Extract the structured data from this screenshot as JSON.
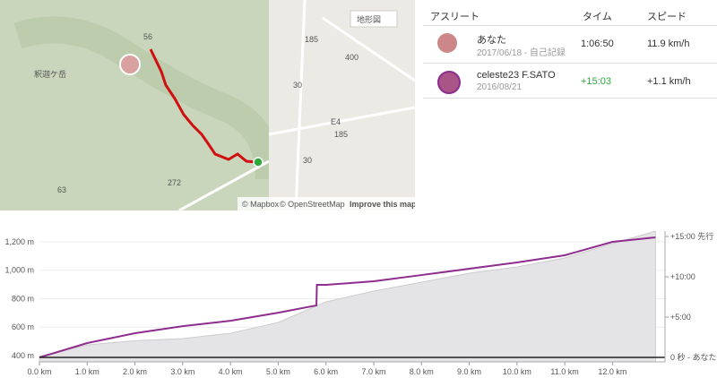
{
  "map": {
    "layer_button": "地形図",
    "place": "釈迦ケ岳",
    "roads": [
      "56",
      "185",
      "400",
      "30",
      "E4",
      "185",
      "30",
      "63",
      "272"
    ],
    "attribution": [
      "© Mapbox",
      "© OpenStreetMap",
      "Improve this map"
    ]
  },
  "table": {
    "headers": [
      "アスリート",
      "タイム",
      "スピード"
    ],
    "rows": [
      {
        "name": "あなた",
        "date": "2017/06/18 - 自己記録",
        "time": "1:06:50",
        "speed": "11.9 km/h"
      },
      {
        "name": "celeste23 F.SATO",
        "date": "2016/08/21",
        "time": "+15:03",
        "speed": "+1.1 km/h"
      }
    ]
  },
  "chart": {
    "xlim": [
      0,
      13.1
    ],
    "ylim": [
      356,
      1275
    ],
    "y2lim": [
      -33,
      940
    ],
    "xticks": [
      {
        "value": 0,
        "label": "0.0 km"
      },
      {
        "value": 1,
        "label": "1.0 km"
      },
      {
        "value": 2,
        "label": "2.0 km"
      },
      {
        "value": 3,
        "label": "3.0 km"
      },
      {
        "value": 4,
        "label": "4.0 km"
      },
      {
        "value": 5,
        "label": "5.0 km"
      },
      {
        "value": 6,
        "label": "6.0 km"
      },
      {
        "value": 7,
        "label": "7.0 km"
      },
      {
        "value": 8,
        "label": "8.0 km"
      },
      {
        "value": 9,
        "label": "9.0 km"
      },
      {
        "value": 10,
        "label": "10.0 km"
      },
      {
        "value": 11,
        "label": "11.0 km"
      },
      {
        "value": 12,
        "label": "12.0 km"
      }
    ],
    "yticks": [
      {
        "value": 400,
        "label": "400 m"
      },
      {
        "value": 600,
        "label": "600 m"
      },
      {
        "value": 800,
        "label": "800 m"
      },
      {
        "value": 1000,
        "label": "1,000 m"
      },
      {
        "value": 1200,
        "label": "1,200 m"
      }
    ],
    "y2ticks": [
      {
        "value": 0,
        "label": "0 秒 - あなた"
      },
      {
        "value": 300,
        "label": "+5:00"
      },
      {
        "value": 600,
        "label": "+10:00"
      },
      {
        "value": 900,
        "label": "+15:00 先行"
      }
    ],
    "elevation": {
      "color": "#e4e4e6",
      "x": [
        0,
        1,
        2,
        3,
        4,
        5,
        6,
        7,
        8,
        9,
        10,
        11,
        12,
        12.9
      ],
      "values": [
        395,
        475,
        505,
        520,
        557,
        633,
        778,
        853,
        916,
        979,
        1023,
        1086,
        1187,
        1275
      ]
    },
    "gap": {
      "color": "#8e2d8e",
      "x": [
        0,
        1,
        2,
        3,
        4,
        5,
        5.8,
        5.81,
        6,
        7,
        8,
        9,
        10,
        11,
        12,
        12.9
      ],
      "values": [
        0,
        107,
        180,
        233,
        273,
        333,
        387,
        540,
        540,
        567,
        613,
        660,
        707,
        760,
        860,
        893
      ]
    }
  }
}
